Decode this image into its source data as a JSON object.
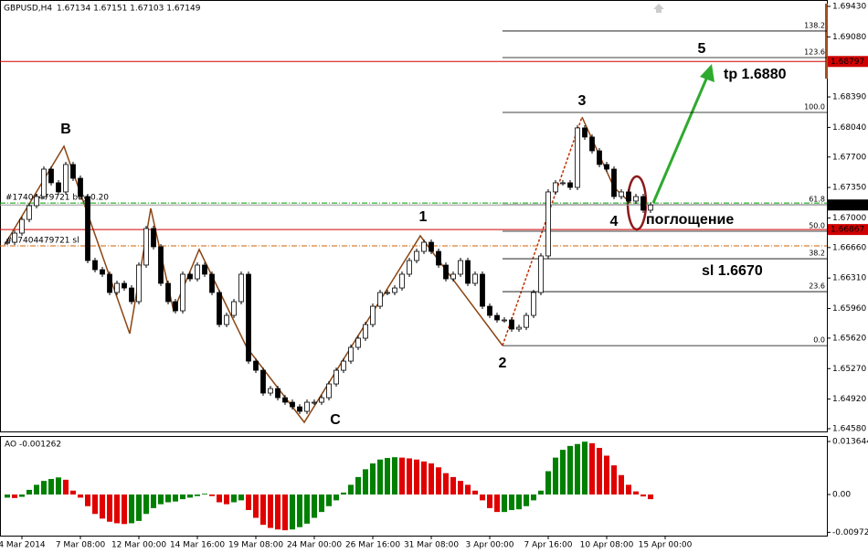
{
  "chart_data": {
    "type": "candlestick",
    "title": "GBPUSD,H4",
    "title_values": "1.67134 1.67151 1.67103 1.67149",
    "categories": [
      null,
      null,
      "4 Mar 2014",
      null,
      null,
      null,
      null,
      null,
      null,
      null,
      "7 Mar 08:00",
      null,
      null,
      null,
      null,
      null,
      null,
      null,
      "12 Mar 00:00",
      null,
      null,
      null,
      null,
      null,
      null,
      null,
      "14 Mar 16:00",
      null,
      null,
      null,
      null,
      null,
      null,
      null,
      "19 Mar 08:00",
      null,
      null,
      null,
      null,
      null,
      null,
      null,
      "24 Mar 00:00",
      null,
      null,
      null,
      null,
      null,
      null,
      null,
      "26 Mar 16:00",
      null,
      null,
      null,
      null,
      null,
      null,
      null,
      "31 Mar 08:00",
      null,
      null,
      null,
      null,
      null,
      null,
      null,
      "3 Apr 00:00",
      null,
      null,
      null,
      null,
      null,
      null,
      null,
      "7 Apr 16:00",
      null,
      null,
      null,
      null,
      null,
      null,
      null,
      "10 Apr 08:00",
      null,
      null,
      null,
      null,
      null,
      null,
      null,
      "15 Apr 00:00"
    ],
    "close": [
      1.66721,
      1.66826,
      1.66983,
      1.67141,
      1.67246,
      1.67561,
      1.67404,
      1.67299,
      1.67614,
      1.67456,
      1.67246,
      1.66511,
      1.66406,
      1.66354,
      1.66144,
      1.66249,
      1.66196,
      1.66039,
      1.66459,
      1.66879,
      1.66669,
      1.66249,
      1.66039,
      1.65934,
      1.66354,
      1.66301,
      1.66459,
      1.66354,
      1.66144,
      1.65776,
      1.65881,
      1.66039,
      1.66354,
      1.65356,
      1.65251,
      1.64989,
      1.65041,
      1.64936,
      1.64884,
      1.64831,
      1.64779,
      1.64884,
      1.64884,
      1.64936,
      1.65094,
      1.65251,
      1.65356,
      1.65514,
      1.65619,
      1.65776,
      1.65986,
      1.66144,
      1.66144,
      1.66196,
      1.66354,
      1.66511,
      1.66616,
      1.66721,
      1.66616,
      1.66459,
      1.66301,
      1.66354,
      1.66511,
      1.66249,
      1.66354,
      1.65986,
      1.65881,
      1.65829,
      1.65829,
      1.65724,
      1.65744,
      1.65881,
      1.66144,
      1.66564,
      1.67299,
      1.67404,
      1.67404,
      1.67351,
      1.68034,
      1.67929,
      1.67771,
      1.67614,
      1.67561,
      1.67246,
      1.67299,
      1.67194,
      1.67246,
      1.67089,
      1.67149,
      null,
      null
    ],
    "colors": {
      "up": "#ffffff",
      "down": "#000000"
    },
    "ylim": [
      1.64538,
      1.69503
    ],
    "yticks": [
      {
        "value": 1.6943,
        "label": "1.69430"
      },
      {
        "value": 1.6908,
        "label": "1.69080"
      },
      {
        "value": 1.6839,
        "label": "1.68390"
      },
      {
        "value": 1.6804,
        "label": "1.68040"
      },
      {
        "value": 1.677,
        "label": "1.67700"
      },
      {
        "value": 1.6735,
        "label": "1.67350"
      },
      {
        "value": 1.67,
        "label": "1.67000"
      },
      {
        "value": 1.6666,
        "label": "1.66660"
      },
      {
        "value": 1.6631,
        "label": "1.66310"
      },
      {
        "value": 1.6596,
        "label": "1.65960"
      },
      {
        "value": 1.6562,
        "label": "1.65620"
      },
      {
        "value": 1.6527,
        "label": "1.65270"
      },
      {
        "value": 1.6492,
        "label": "1.64920"
      },
      {
        "value": 1.6458,
        "label": "1.64580"
      }
    ],
    "price_lines": [
      {
        "value": 1.68797,
        "color": "#d00000"
      },
      {
        "value": 1.66867,
        "color": "#d00000"
      },
      {
        "value": 1.67149,
        "color": "#000000"
      }
    ],
    "order_lines": [
      {
        "value": 1.67172,
        "label": "#17404479721 buy 0.20",
        "color": "#00a000"
      },
      {
        "value": 1.66679,
        "label": "#17404479721 sl",
        "color": "#d06000"
      }
    ],
    "fibonacci": [
      {
        "value": 1.69147,
        "label": "138.2"
      },
      {
        "value": 1.68842,
        "label": "123.6"
      },
      {
        "value": 1.68212,
        "label": "100.0"
      },
      {
        "value": 1.67152,
        "label": "61.8"
      },
      {
        "value": 1.66847,
        "label": "50.0"
      },
      {
        "value": 1.66532,
        "label": "38.2"
      },
      {
        "value": 1.66154,
        "label": "23.6"
      },
      {
        "value": 1.65534,
        "label": "0.0"
      }
    ],
    "annotations": [
      "B",
      "C",
      "1",
      "2",
      "3",
      "4",
      "5",
      "tp 1.6880",
      "sl 1.6670",
      "поглощение"
    ],
    "oscillator": {
      "type": "bar",
      "title": "AO -0.001262",
      "values": [
        -0.0008,
        -0.0009,
        -0.0006,
        0.0012,
        0.0025,
        0.0035,
        0.004,
        0.0044,
        0.0038,
        0.001,
        -0.0008,
        -0.003,
        -0.005,
        -0.0062,
        -0.007,
        -0.0074,
        -0.0076,
        -0.0074,
        -0.0068,
        -0.005,
        -0.0035,
        -0.0025,
        -0.002,
        -0.0018,
        -0.0012,
        -0.0008,
        -0.0004,
        0.0002,
        -0.0004,
        -0.002,
        -0.0025,
        -0.002,
        -0.0015,
        -0.004,
        -0.006,
        -0.0078,
        -0.0086,
        -0.009,
        -0.0092,
        -0.009,
        -0.0084,
        -0.0075,
        -0.006,
        -0.0045,
        -0.003,
        -0.0015,
        0.0005,
        0.0025,
        0.0045,
        0.0065,
        0.008,
        0.009,
        0.0094,
        0.0096,
        0.0095,
        0.0093,
        0.009,
        0.0085,
        0.008,
        0.007,
        0.0055,
        0.0045,
        0.0035,
        0.0025,
        0.001,
        -0.0015,
        -0.0035,
        -0.0045,
        -0.0045,
        -0.004,
        -0.0038,
        -0.003,
        -0.0015,
        0.001,
        0.006,
        0.0095,
        0.0115,
        0.0125,
        0.013,
        0.0136,
        0.0132,
        0.012,
        0.01,
        0.0075,
        0.005,
        0.0025,
        0.0008,
        -0.0005,
        -0.0012,
        null,
        null
      ],
      "colors": {
        "up": "#008000",
        "down": "#e00000"
      },
      "ylim": [
        -0.01035,
        0.01506
      ],
      "yticks": [
        0.013644,
        {
          "value": 0,
          "label": "0.00"
        },
        -0.009727
      ]
    }
  }
}
